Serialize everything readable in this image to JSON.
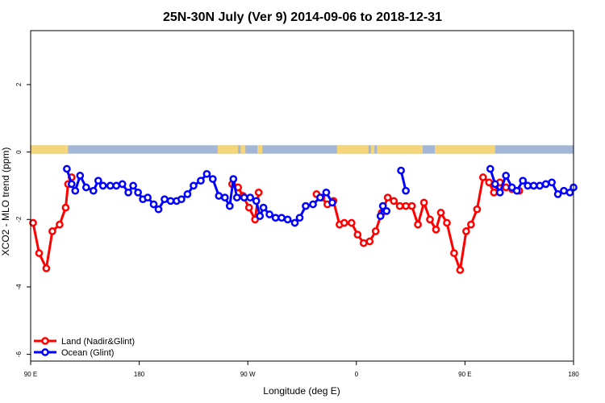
{
  "chart_data": {
    "type": "line",
    "title": "25N-30N July (Ver 9)   2014-09-06 to 2018-12-31",
    "xlabel": "Longitude (deg E)",
    "ylabel": "XCO2 - MLO trend (ppm)",
    "xlim": [
      90,
      540
    ],
    "ylim": [
      -6.2,
      3.6
    ],
    "x_tick_values": [
      90,
      180,
      270,
      360,
      450,
      540
    ],
    "x_tick_labels": [
      "90 E",
      "180",
      "90 W",
      "0",
      "90 E",
      "180"
    ],
    "y_tick_values": [
      2,
      0,
      -2,
      -4,
      -6
    ],
    "y_tick_labels": [
      "2",
      "0",
      "-2",
      "-4",
      "-6"
    ],
    "grid": false,
    "legend_position": "bottom-left",
    "colors": {
      "land": "#ff0000",
      "ocean": "#0000ff",
      "land_band": "#f4d57a",
      "ocean_band": "#a4b6d6"
    },
    "surface_band": {
      "y_range": [
        -0.05,
        0.2
      ],
      "land_segments": [
        [
          90,
          121
        ],
        [
          245,
          262
        ],
        [
          264,
          268
        ],
        [
          278,
          282
        ],
        [
          344,
          370
        ],
        [
          372,
          375
        ],
        [
          377,
          415
        ],
        [
          425,
          475
        ]
      ]
    },
    "series": [
      {
        "name": "Land (Nadir&Glint)",
        "color": "#ff0000",
        "segments": [
          {
            "x": [
              92,
              97,
              103,
              108,
              114,
              119,
              121,
              124
            ],
            "y": [
              -2.1,
              -3.0,
              -3.45,
              -2.35,
              -2.15,
              -1.65,
              -0.95,
              -0.75
            ]
          },
          {
            "x": [
              257,
              262,
              266,
              271,
              276,
              279
            ],
            "y": [
              -0.95,
              -1.05,
              -1.3,
              -1.65,
              -2.0,
              -1.2
            ]
          },
          {
            "x": [
              327,
              331,
              336,
              341,
              346,
              350,
              356,
              361,
              366,
              371,
              376,
              381,
              386,
              391,
              396,
              401,
              406,
              411,
              416,
              421,
              426,
              430,
              435,
              441,
              446,
              451,
              455,
              460,
              465,
              470,
              474,
              479,
              484,
              489,
              495
            ],
            "y": [
              -1.25,
              -1.35,
              -1.55,
              -1.45,
              -2.15,
              -2.1,
              -2.1,
              -2.45,
              -2.7,
              -2.65,
              -2.35,
              -1.8,
              -1.35,
              -1.45,
              -1.6,
              -1.6,
              -1.6,
              -2.15,
              -1.5,
              -2.0,
              -2.3,
              -1.8,
              -2.1,
              -3.0,
              -3.5,
              -2.35,
              -2.15,
              -1.7,
              -0.75,
              -0.9,
              -1.2,
              -0.9,
              -1.05,
              -1.1,
              -1.15
            ]
          }
        ]
      },
      {
        "name": "Ocean (Glint)",
        "color": "#0000ff",
        "segments": [
          {
            "x": [
              120,
              124,
              127,
              131,
              136,
              142,
              146,
              150,
              156,
              161,
              166,
              171,
              175,
              179,
              183,
              187,
              192,
              196,
              201,
              206,
              211,
              215,
              220,
              225,
              231,
              236,
              241,
              246,
              251,
              255,
              258,
              261,
              267,
              272,
              277,
              280,
              283,
              288,
              293,
              298,
              303,
              309,
              313,
              318,
              324,
              330,
              335,
              340
            ],
            "y": [
              -0.5,
              -0.95,
              -1.15,
              -0.7,
              -1.05,
              -1.15,
              -0.85,
              -1.0,
              -1.0,
              -1.0,
              -0.95,
              -1.2,
              -1.0,
              -1.2,
              -1.4,
              -1.35,
              -1.55,
              -1.7,
              -1.4,
              -1.45,
              -1.45,
              -1.4,
              -1.25,
              -1.0,
              -0.85,
              -0.65,
              -0.8,
              -1.3,
              -1.35,
              -1.6,
              -0.8,
              -1.35,
              -1.35,
              -1.35,
              -1.45,
              -1.9,
              -1.65,
              -1.85,
              -1.95,
              -1.95,
              -2.0,
              -2.1,
              -1.95,
              -1.6,
              -1.55,
              -1.35,
              -1.2,
              -1.5
            ]
          },
          {
            "x": [
              380,
              382,
              385
            ],
            "y": [
              -1.9,
              -1.6,
              -1.75
            ]
          },
          {
            "x": [
              397,
              401
            ],
            "y": [
              -0.55,
              -1.15
            ]
          },
          {
            "x": [
              471,
              475,
              479,
              484,
              489,
              493,
              498,
              502,
              507,
              512,
              517,
              522,
              527,
              532,
              537,
              540
            ],
            "y": [
              -0.5,
              -0.95,
              -1.2,
              -0.7,
              -1.05,
              -1.15,
              -0.85,
              -1.0,
              -1.0,
              -1.0,
              -0.95,
              -0.9,
              -1.25,
              -1.15,
              -1.2,
              -1.05
            ]
          }
        ]
      }
    ]
  }
}
